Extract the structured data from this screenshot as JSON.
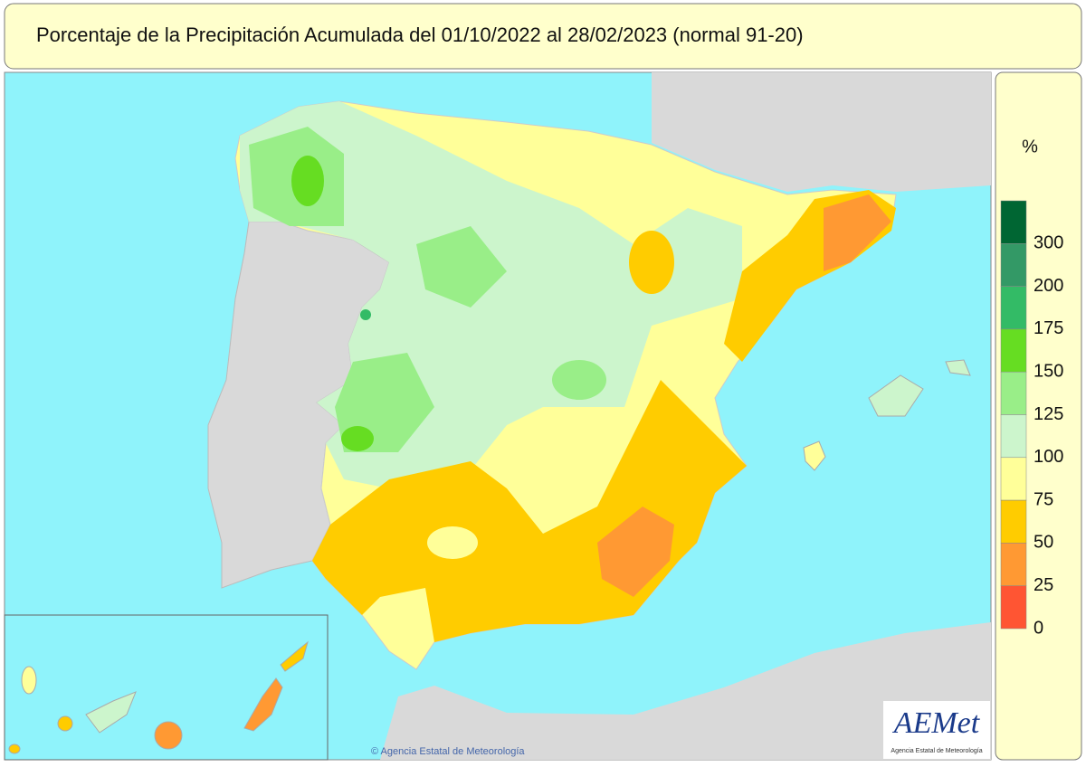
{
  "header": {
    "title": "Porcentaje de la Precipitación Acumulada del 01/10/2022 al 28/02/2023 (normal 91-20)"
  },
  "legend": {
    "unit": "%",
    "labels": [
      300,
      200,
      175,
      150,
      125,
      100,
      75,
      50,
      25,
      0
    ],
    "colors": [
      "#006633",
      "#339966",
      "#33bb66",
      "#66dd22",
      "#99ee88",
      "#ccf5cc",
      "#ffff99",
      "#ffcc00",
      "#ff9933",
      "#ff5533"
    ]
  },
  "credit": "© Agencia Estatal de Meteorología",
  "logo": {
    "name": "AEMet",
    "subtitle": "Agencia Estatal de Meteorología"
  }
}
